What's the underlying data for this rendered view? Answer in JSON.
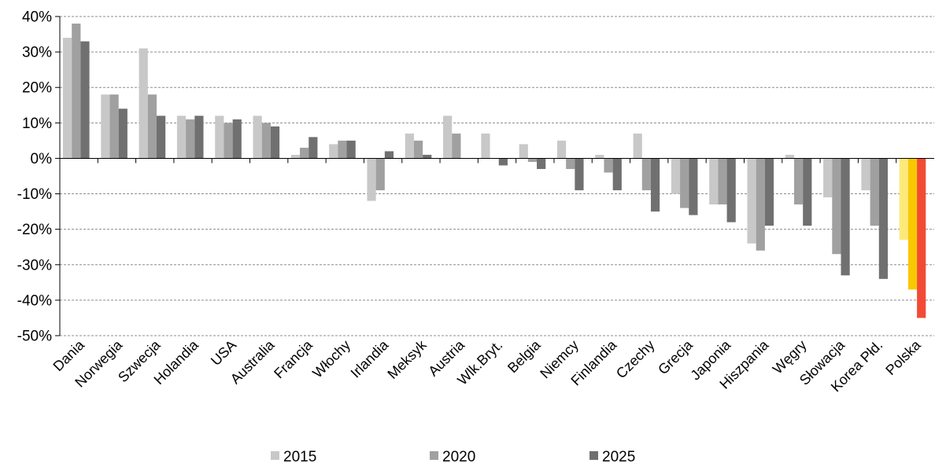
{
  "chart_data": {
    "type": "bar",
    "categories": [
      "Dania",
      "Norwegia",
      "Szwecja",
      "Holandia",
      "USA",
      "Australia",
      "Francja",
      "Włochy",
      "Irlandia",
      "Meksyk",
      "Austria",
      "Wlk.Bryt.",
      "Belgia",
      "Niemcy",
      "Finlandia",
      "Czechy",
      "Grecja",
      "Japonia",
      "Hiszpania",
      "Węgry",
      "Słowacja",
      "Korea Płd.",
      "Polska"
    ],
    "series": [
      {
        "name": "2015",
        "color": "#c8c8c8",
        "values": [
          34,
          18,
          31,
          12,
          12,
          12,
          1,
          4,
          -12,
          7,
          12,
          7,
          4,
          5,
          1,
          7,
          -10,
          -13,
          -24,
          1,
          -11,
          -9,
          -23
        ]
      },
      {
        "name": "2020",
        "color": "#a0a0a0",
        "values": [
          38,
          18,
          18,
          11,
          10,
          10,
          3,
          5,
          -9,
          5,
          7,
          0,
          -1,
          -3,
          -4,
          -9,
          -14,
          -13,
          -26,
          -13,
          -27,
          -19,
          -37
        ]
      },
      {
        "name": "2025",
        "color": "#707070",
        "values": [
          33,
          14,
          12,
          12,
          11,
          9,
          6,
          5,
          2,
          1,
          0,
          -2,
          -3,
          -9,
          -9,
          -15,
          -16,
          -18,
          -19,
          -19,
          -33,
          -34,
          -45
        ]
      }
    ],
    "highlight": {
      "category": "Polska",
      "colors": [
        "#fde97a",
        "#f9c800",
        "#f24b35"
      ]
    },
    "yticks": [
      "40%",
      "30%",
      "20%",
      "10%",
      "0%",
      "-10%",
      "-20%",
      "-30%",
      "-40%",
      "-50%"
    ],
    "ylim": [
      -50,
      40
    ],
    "grid": true,
    "legend_position": "bottom"
  }
}
